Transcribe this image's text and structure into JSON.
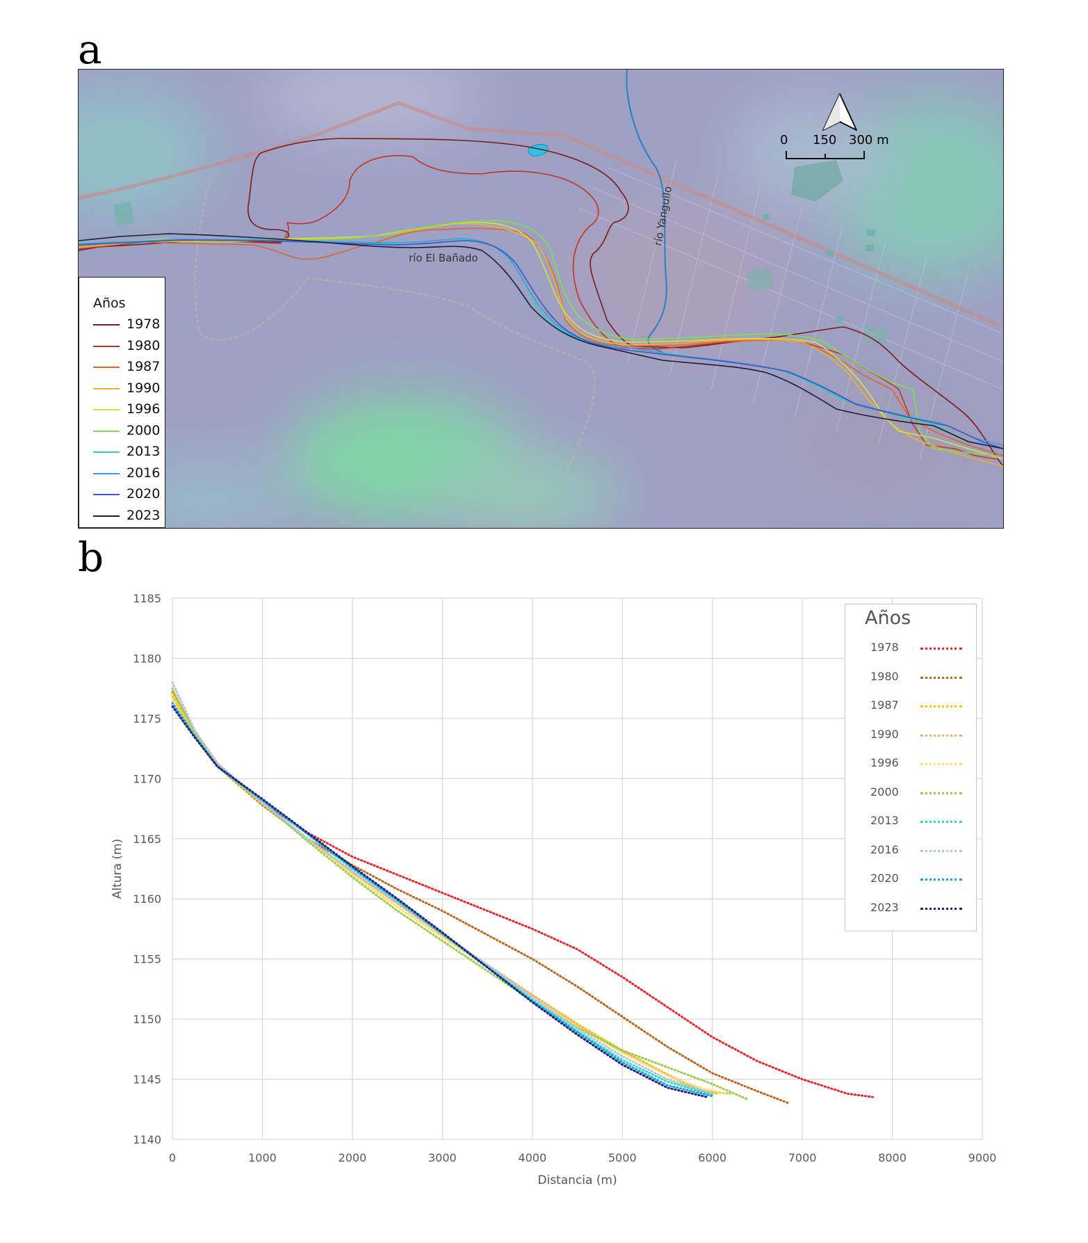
{
  "panels": {
    "a": "a",
    "b": "b"
  },
  "map": {
    "labels": {
      "river_main": "río El Bañado",
      "river_trib": "río Yanguilo"
    },
    "scale": {
      "ticks": [
        "0",
        "150",
        "300 m"
      ]
    },
    "legend": {
      "title": "Años",
      "items": [
        {
          "year": "1978",
          "color": "#7a1a1a"
        },
        {
          "year": "1980",
          "color": "#c8321e"
        },
        {
          "year": "1987",
          "color": "#e0632c"
        },
        {
          "year": "1990",
          "color": "#f2b02e"
        },
        {
          "year": "1996",
          "color": "#d8e23a"
        },
        {
          "year": "2000",
          "color": "#7ee04a"
        },
        {
          "year": "2013",
          "color": "#2fd3b0"
        },
        {
          "year": "2016",
          "color": "#3a9ee0"
        },
        {
          "year": "2020",
          "color": "#3a56c8"
        },
        {
          "year": "2023",
          "color": "#1c1c3a"
        }
      ]
    }
  },
  "chart_data": {
    "type": "line",
    "title": "",
    "xlabel": "Distancia (m)",
    "ylabel": "Altura (m)",
    "xlim": [
      0,
      9000
    ],
    "ylim": [
      1140,
      1185
    ],
    "xticks": [
      0,
      1000,
      2000,
      3000,
      4000,
      5000,
      6000,
      7000,
      8000,
      9000
    ],
    "yticks": [
      1140,
      1145,
      1150,
      1155,
      1160,
      1165,
      1170,
      1175,
      1180,
      1185
    ],
    "grid": true,
    "line_style": "dotted",
    "legend": {
      "title": "Años",
      "position": "top-right"
    },
    "series": [
      {
        "name": "1978",
        "color": "#e8262a",
        "points": [
          [
            0,
            1177
          ],
          [
            250,
            1173.5
          ],
          [
            500,
            1171
          ],
          [
            1000,
            1168
          ],
          [
            1500,
            1165.5
          ],
          [
            2000,
            1163.5
          ],
          [
            2500,
            1162
          ],
          [
            3000,
            1160.5
          ],
          [
            3500,
            1159
          ],
          [
            4000,
            1157.5
          ],
          [
            4500,
            1155.8
          ],
          [
            5000,
            1153.5
          ],
          [
            5500,
            1151
          ],
          [
            6000,
            1148.5
          ],
          [
            6500,
            1146.5
          ],
          [
            7000,
            1145
          ],
          [
            7500,
            1143.8
          ],
          [
            7800,
            1143.5
          ]
        ]
      },
      {
        "name": "1980",
        "color": "#c0651f",
        "points": [
          [
            0,
            1177.2
          ],
          [
            250,
            1173.6
          ],
          [
            500,
            1171
          ],
          [
            1000,
            1167.8
          ],
          [
            1500,
            1165
          ],
          [
            2000,
            1162.8
          ],
          [
            2500,
            1160.8
          ],
          [
            3000,
            1159
          ],
          [
            3500,
            1157
          ],
          [
            4000,
            1155
          ],
          [
            4500,
            1152.7
          ],
          [
            5000,
            1150.2
          ],
          [
            5500,
            1147.7
          ],
          [
            6000,
            1145.5
          ],
          [
            6500,
            1144
          ],
          [
            6850,
            1143
          ]
        ]
      },
      {
        "name": "1987",
        "color": "#f5c400",
        "points": [
          [
            0,
            1176.8
          ],
          [
            250,
            1173.6
          ],
          [
            500,
            1171
          ],
          [
            1000,
            1168
          ],
          [
            1500,
            1165
          ],
          [
            2000,
            1162.2
          ],
          [
            2500,
            1159.6
          ],
          [
            3000,
            1157
          ],
          [
            3500,
            1154.5
          ],
          [
            4000,
            1152
          ],
          [
            4500,
            1149.6
          ],
          [
            5000,
            1147.4
          ],
          [
            5500,
            1145.4
          ],
          [
            5800,
            1144.2
          ],
          [
            6050,
            1143.8
          ]
        ]
      },
      {
        "name": "1990",
        "color": "#f0b070",
        "points": [
          [
            0,
            1177.5
          ],
          [
            250,
            1173.8
          ],
          [
            500,
            1171.2
          ],
          [
            1000,
            1168
          ],
          [
            1500,
            1165
          ],
          [
            2000,
            1162.2
          ],
          [
            2500,
            1159.6
          ],
          [
            3000,
            1157
          ],
          [
            3500,
            1154.5
          ],
          [
            4000,
            1152
          ],
          [
            4500,
            1149.5
          ],
          [
            5000,
            1147.3
          ],
          [
            5500,
            1145.4
          ],
          [
            5900,
            1144
          ],
          [
            6200,
            1143.8
          ]
        ]
      },
      {
        "name": "1996",
        "color": "#ffe066",
        "points": [
          [
            0,
            1177
          ],
          [
            250,
            1173.7
          ],
          [
            500,
            1171
          ],
          [
            1000,
            1167.9
          ],
          [
            1500,
            1165
          ],
          [
            2000,
            1162
          ],
          [
            2500,
            1159.3
          ],
          [
            3000,
            1156.8
          ],
          [
            3500,
            1154.3
          ],
          [
            4000,
            1151.8
          ],
          [
            4500,
            1149.4
          ],
          [
            5000,
            1147.2
          ],
          [
            5500,
            1145.3
          ],
          [
            5900,
            1144.2
          ],
          [
            6150,
            1143.8
          ]
        ]
      },
      {
        "name": "2000",
        "color": "#9acd50",
        "points": [
          [
            0,
            1177.3
          ],
          [
            250,
            1173.8
          ],
          [
            500,
            1171
          ],
          [
            1000,
            1168
          ],
          [
            1500,
            1164.8
          ],
          [
            2000,
            1161.8
          ],
          [
            2500,
            1159
          ],
          [
            3000,
            1156.5
          ],
          [
            3500,
            1154
          ],
          [
            4000,
            1151.5
          ],
          [
            4500,
            1149.3
          ],
          [
            5000,
            1147.4
          ],
          [
            5500,
            1146
          ],
          [
            6000,
            1144.6
          ],
          [
            6400,
            1143.3
          ]
        ]
      },
      {
        "name": "2013",
        "color": "#33dcc0",
        "points": [
          [
            0,
            1176
          ],
          [
            250,
            1173.5
          ],
          [
            500,
            1171
          ],
          [
            1000,
            1168.2
          ],
          [
            1500,
            1165.4
          ],
          [
            2000,
            1162.5
          ],
          [
            2500,
            1159.8
          ],
          [
            3000,
            1157.1
          ],
          [
            3500,
            1154.4
          ],
          [
            4000,
            1151.6
          ],
          [
            4500,
            1149
          ],
          [
            5000,
            1146.6
          ],
          [
            5500,
            1144.8
          ],
          [
            6000,
            1143.7
          ]
        ]
      },
      {
        "name": "2016",
        "color": "#b0c4de",
        "points": [
          [
            0,
            1178
          ],
          [
            250,
            1174
          ],
          [
            500,
            1171.3
          ],
          [
            1000,
            1168
          ],
          [
            1500,
            1165
          ],
          [
            2000,
            1162.3
          ],
          [
            2500,
            1159.7
          ],
          [
            3000,
            1157.1
          ],
          [
            3500,
            1154.5
          ],
          [
            4000,
            1151.8
          ],
          [
            4500,
            1149.2
          ],
          [
            5000,
            1146.9
          ],
          [
            5500,
            1145
          ],
          [
            6000,
            1143.8
          ]
        ]
      },
      {
        "name": "2020",
        "color": "#1aa0e0",
        "points": [
          [
            0,
            1176.3
          ],
          [
            250,
            1173.5
          ],
          [
            500,
            1171
          ],
          [
            1000,
            1168.2
          ],
          [
            1500,
            1165.4
          ],
          [
            2000,
            1162.6
          ],
          [
            2500,
            1159.9
          ],
          [
            3000,
            1157.1
          ],
          [
            3500,
            1154.3
          ],
          [
            4000,
            1151.5
          ],
          [
            4500,
            1148.9
          ],
          [
            5000,
            1146.4
          ],
          [
            5500,
            1144.5
          ],
          [
            6000,
            1143.6
          ]
        ]
      },
      {
        "name": "2023",
        "color": "#1a237e",
        "points": [
          [
            0,
            1176
          ],
          [
            250,
            1173.4
          ],
          [
            500,
            1171
          ],
          [
            1000,
            1168.3
          ],
          [
            1500,
            1165.5
          ],
          [
            2000,
            1162.7
          ],
          [
            2500,
            1160
          ],
          [
            3000,
            1157.2
          ],
          [
            3500,
            1154.3
          ],
          [
            4000,
            1151.4
          ],
          [
            4500,
            1148.7
          ],
          [
            5000,
            1146.2
          ],
          [
            5500,
            1144.3
          ],
          [
            5950,
            1143.5
          ]
        ]
      }
    ]
  }
}
